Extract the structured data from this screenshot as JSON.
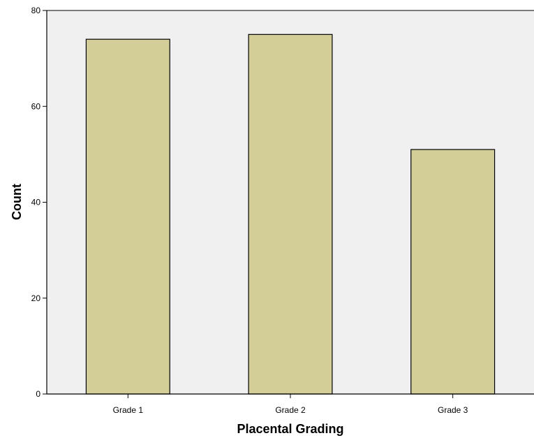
{
  "chart_data": {
    "type": "bar",
    "title": "",
    "xlabel": "Placental Grading",
    "ylabel": "Count",
    "categories": [
      "Grade 1",
      "Grade 2",
      "Grade 3"
    ],
    "values": [
      74,
      75,
      51
    ],
    "ylim": [
      0,
      80
    ],
    "yticks": [
      "0",
      "20",
      "40",
      "60",
      "80"
    ],
    "grid": false,
    "legend": "none",
    "colors": {
      "bar_fill": "#d3ce98",
      "bar_stroke": "#000000",
      "plot_background": "#f0f0f0",
      "page_background": "#ffffff"
    }
  }
}
